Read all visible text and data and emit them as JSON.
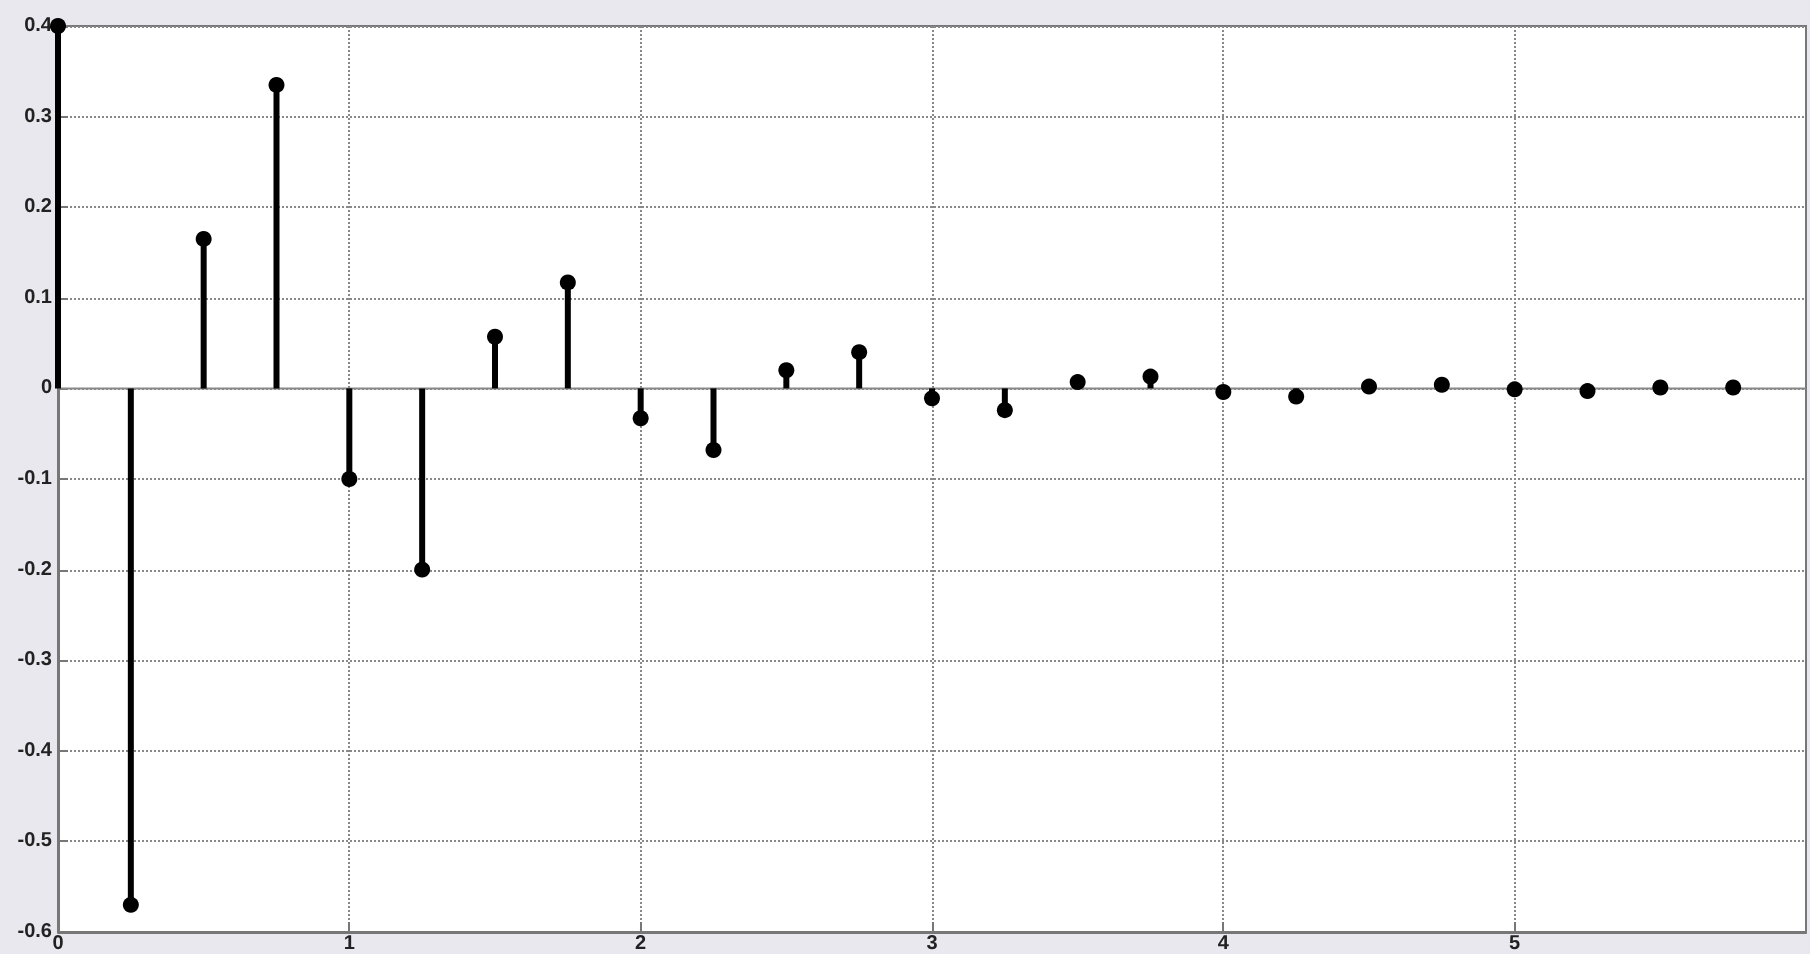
{
  "chart_data": {
    "type": "lollipop",
    "x": [
      0,
      0.25,
      0.5,
      0.75,
      1,
      1.25,
      1.5,
      1.75,
      2,
      2.25,
      2.5,
      2.75,
      3,
      3.25,
      3.5,
      3.75,
      4,
      4.25,
      4.5,
      4.75,
      5,
      5.25,
      5.5,
      5.75
    ],
    "values": [
      0.4,
      -0.57,
      0.165,
      0.335,
      -0.1,
      -0.2,
      0.057,
      0.117,
      -0.033,
      -0.068,
      0.02,
      0.04,
      -0.011,
      -0.024,
      0.007,
      0.013,
      -0.004,
      -0.009,
      0.002,
      0.004,
      -0.001,
      -0.003,
      0.001,
      0.001
    ],
    "color": "#000000",
    "marker": "circle",
    "xlim": [
      0,
      6
    ],
    "xticks": [
      0,
      1,
      2,
      3,
      4,
      5
    ],
    "ylim": [
      -0.6,
      0.4
    ],
    "yticks": [
      -0.6,
      -0.5,
      -0.4,
      -0.3,
      -0.2,
      -0.1,
      0,
      0.1,
      0.2,
      0.3,
      0.4
    ],
    "grid": true
  }
}
